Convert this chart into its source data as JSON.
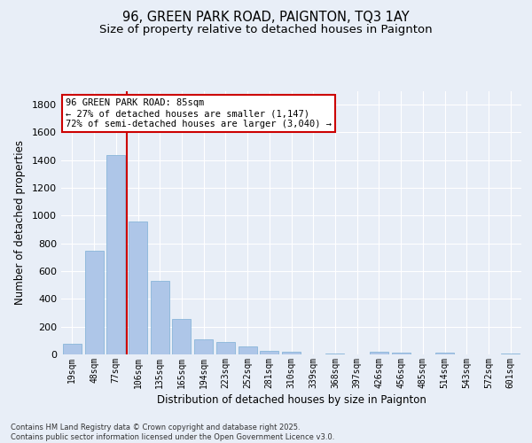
{
  "title_line1": "96, GREEN PARK ROAD, PAIGNTON, TQ3 1AY",
  "title_line2": "Size of property relative to detached houses in Paignton",
  "xlabel": "Distribution of detached houses by size in Paignton",
  "ylabel": "Number of detached properties",
  "categories": [
    "19sqm",
    "48sqm",
    "77sqm",
    "106sqm",
    "135sqm",
    "165sqm",
    "194sqm",
    "223sqm",
    "252sqm",
    "281sqm",
    "310sqm",
    "339sqm",
    "368sqm",
    "397sqm",
    "426sqm",
    "456sqm",
    "485sqm",
    "514sqm",
    "543sqm",
    "572sqm",
    "601sqm"
  ],
  "values": [
    75,
    750,
    1440,
    960,
    530,
    255,
    110,
    90,
    60,
    25,
    20,
    0,
    5,
    0,
    20,
    10,
    0,
    10,
    0,
    0,
    5
  ],
  "bar_color": "#aec6e8",
  "bar_edge_color": "#7bafd4",
  "vline_color": "#cc0000",
  "vline_x_index": 2,
  "annotation_text": "96 GREEN PARK ROAD: 85sqm\n← 27% of detached houses are smaller (1,147)\n72% of semi-detached houses are larger (3,040) →",
  "annotation_box_color": "#ffffff",
  "annotation_box_edge": "#cc0000",
  "footnote": "Contains HM Land Registry data © Crown copyright and database right 2025.\nContains public sector information licensed under the Open Government Licence v3.0.",
  "ylim": [
    0,
    1900
  ],
  "background_color": "#e8eef7",
  "grid_color": "#ffffff",
  "title_fontsize": 10.5,
  "subtitle_fontsize": 9.5,
  "ylabel_fontsize": 8.5,
  "xlabel_fontsize": 8.5
}
